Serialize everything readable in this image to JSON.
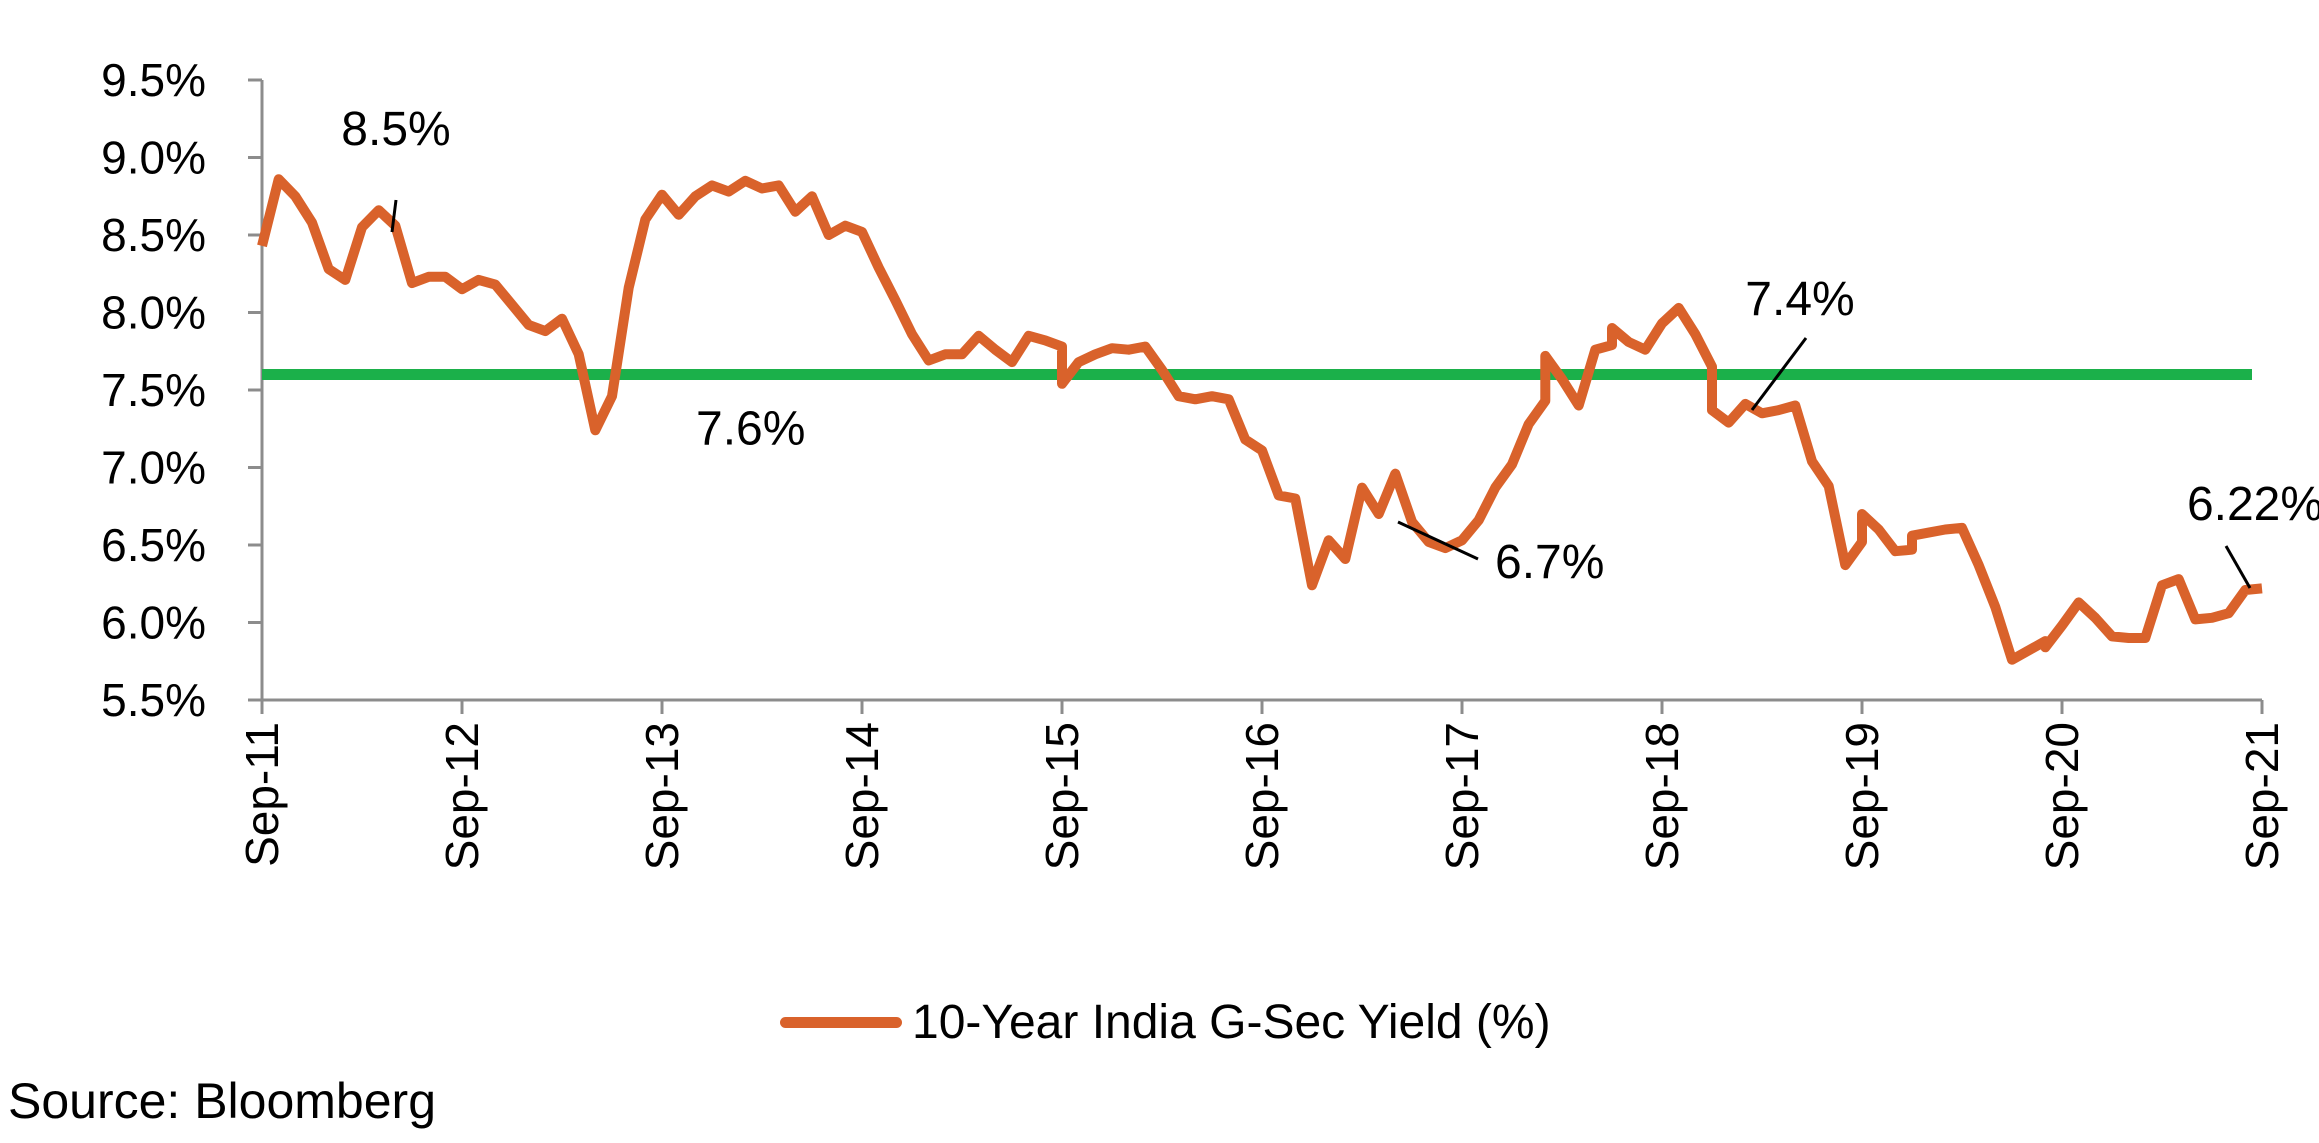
{
  "chart_data": {
    "type": "line",
    "title": "",
    "xlabel": "",
    "ylabel": "",
    "ylim": [
      5.5,
      9.5
    ],
    "xlim": [
      "2011-09",
      "2021-09"
    ],
    "y_ticks": [
      "5.5%",
      "6.0%",
      "6.5%",
      "7.0%",
      "7.5%",
      "8.0%",
      "8.5%",
      "9.0%",
      "9.5%"
    ],
    "x_ticks": [
      "Sep-11",
      "Sep-12",
      "Sep-13",
      "Sep-14",
      "Sep-15",
      "Sep-16",
      "Sep-17",
      "Sep-18",
      "Sep-19",
      "Sep-20",
      "Sep-21"
    ],
    "legend_position": "bottom",
    "series": [
      {
        "name": "10-Year India G-Sec Yield (%)",
        "color": "#D9622B",
        "points": [
          [
            "2011-09",
            8.43
          ],
          [
            "2011-10",
            8.86
          ],
          [
            "2011-11",
            8.75
          ],
          [
            "2011-12",
            8.58
          ],
          [
            "2012-01",
            8.28
          ],
          [
            "2012-02",
            8.21
          ],
          [
            "2012-03",
            8.55
          ],
          [
            "2012-04",
            8.66
          ],
          [
            "2012-05",
            8.56
          ],
          [
            "2012-06",
            8.19
          ],
          [
            "2012-07",
            8.23
          ],
          [
            "2012-08",
            8.23
          ],
          [
            "2012-09",
            8.15
          ],
          [
            "2012-10",
            8.21
          ],
          [
            "2012-11",
            8.18
          ],
          [
            "2012-12",
            8.05
          ],
          [
            "2013-01",
            7.92
          ],
          [
            "2013-02",
            7.88
          ],
          [
            "2013-03",
            7.96
          ],
          [
            "2013-04",
            7.73
          ],
          [
            "2013-05",
            7.24
          ],
          [
            "2013-06",
            7.46
          ],
          [
            "2013-07",
            8.16
          ],
          [
            "2013-08",
            8.6
          ],
          [
            "2013-09",
            8.76
          ],
          [
            "2013-10",
            8.63
          ],
          [
            "2013-11",
            8.75
          ],
          [
            "2013-12",
            8.82
          ],
          [
            "2014-01",
            8.78
          ],
          [
            "2014-02",
            8.85
          ],
          [
            "2014-03",
            8.8
          ],
          [
            "2014-04",
            8.82
          ],
          [
            "2014-05",
            8.65
          ],
          [
            "2014-06",
            8.75
          ],
          [
            "2014-07",
            8.5
          ],
          [
            "2014-08",
            8.56
          ],
          [
            "2014-09",
            8.52
          ],
          [
            "2014-10",
            8.29
          ],
          [
            "2014-11",
            8.08
          ],
          [
            "2014-12",
            7.86
          ],
          [
            "2015-01",
            7.69
          ],
          [
            "2015-02",
            7.73
          ],
          [
            "2015-03",
            7.73
          ],
          [
            "2015-04",
            7.85
          ],
          [
            "2015-05",
            7.76
          ],
          [
            "2015-06",
            7.68
          ],
          [
            "2015-07",
            7.85
          ],
          [
            "2015-08",
            7.82
          ],
          [
            "2015-09",
            7.78
          ],
          [
            "2015-09",
            7.54
          ],
          [
            "2015-10",
            7.68
          ],
          [
            "2015-11",
            7.73
          ],
          [
            "2015-12",
            7.77
          ],
          [
            "2016-01",
            7.76
          ],
          [
            "2016-02",
            7.78
          ],
          [
            "2016-03",
            7.63
          ],
          [
            "2016-04",
            7.46
          ],
          [
            "2016-05",
            7.44
          ],
          [
            "2016-06",
            7.46
          ],
          [
            "2016-07",
            7.44
          ],
          [
            "2016-08",
            7.18
          ],
          [
            "2016-09",
            7.11
          ],
          [
            "2016-10",
            6.82
          ],
          [
            "2016-11",
            6.8
          ],
          [
            "2016-12",
            6.24
          ],
          [
            "2017-01",
            6.53
          ],
          [
            "2017-02",
            6.41
          ],
          [
            "2017-03",
            6.87
          ],
          [
            "2017-04",
            6.7
          ],
          [
            "2017-05",
            6.96
          ],
          [
            "2017-06",
            6.65
          ],
          [
            "2017-07",
            6.52
          ],
          [
            "2017-08",
            6.48
          ],
          [
            "2017-09",
            6.53
          ],
          [
            "2017-10",
            6.66
          ],
          [
            "2017-11",
            6.87
          ],
          [
            "2017-12",
            7.02
          ],
          [
            "2018-01",
            7.28
          ],
          [
            "2018-02",
            7.43
          ],
          [
            "2018-02",
            7.72
          ],
          [
            "2018-03",
            7.57
          ],
          [
            "2018-04",
            7.4
          ],
          [
            "2018-05",
            7.76
          ],
          [
            "2018-06",
            7.79
          ],
          [
            "2018-06",
            7.9
          ],
          [
            "2018-07",
            7.81
          ],
          [
            "2018-08",
            7.76
          ],
          [
            "2018-09",
            7.93
          ],
          [
            "2018-10",
            8.03
          ],
          [
            "2018-11",
            7.86
          ],
          [
            "2018-12",
            7.65
          ],
          [
            "2018-12",
            7.37
          ],
          [
            "2019-01",
            7.29
          ],
          [
            "2019-02",
            7.41
          ],
          [
            "2019-03",
            7.35
          ],
          [
            "2019-04",
            7.37
          ],
          [
            "2019-05",
            7.4
          ],
          [
            "2019-06",
            7.04
          ],
          [
            "2019-07",
            6.88
          ],
          [
            "2019-08",
            6.37
          ],
          [
            "2019-09",
            6.52
          ],
          [
            "2019-09",
            6.7
          ],
          [
            "2019-10",
            6.6
          ],
          [
            "2019-11",
            6.46
          ],
          [
            "2019-12",
            6.47
          ],
          [
            "2019-12",
            6.56
          ],
          [
            "2020-01",
            6.58
          ],
          [
            "2020-02",
            6.6
          ],
          [
            "2020-03",
            6.61
          ],
          [
            "2020-04",
            6.37
          ],
          [
            "2020-05",
            6.1
          ],
          [
            "2020-06",
            5.76
          ],
          [
            "2020-07",
            5.82
          ],
          [
            "2020-08",
            5.88
          ],
          [
            "2020-08",
            5.84
          ],
          [
            "2020-09",
            5.98
          ],
          [
            "2020-10",
            6.13
          ],
          [
            "2020-11",
            6.03
          ],
          [
            "2020-12",
            5.91
          ],
          [
            "2021-01",
            5.9
          ],
          [
            "2021-02",
            5.9
          ],
          [
            "2021-03",
            6.24
          ],
          [
            "2021-04",
            6.28
          ],
          [
            "2021-05",
            6.02
          ],
          [
            "2021-06",
            6.03
          ],
          [
            "2021-07",
            6.06
          ],
          [
            "2021-08",
            6.21
          ],
          [
            "2021-09",
            6.22
          ],
          [
            "2021-09",
            6.22
          ]
        ]
      }
    ],
    "reference_line": {
      "value": 7.6,
      "color": "#1BB04A",
      "label": "7.6%"
    },
    "annotations": [
      {
        "text": "8.5%",
        "x": "2012-04",
        "y": 8.55
      },
      {
        "text": "6.7%",
        "x": "2017-06",
        "y": 6.65
      },
      {
        "text": "7.4%",
        "x": "2019-04",
        "y": 7.37
      },
      {
        "text": "6.22%",
        "x": "2021-09",
        "y": 6.22
      }
    ]
  },
  "legend": {
    "label": "10-Year India G-Sec Yield (%)"
  },
  "source": "Source: Bloomberg"
}
